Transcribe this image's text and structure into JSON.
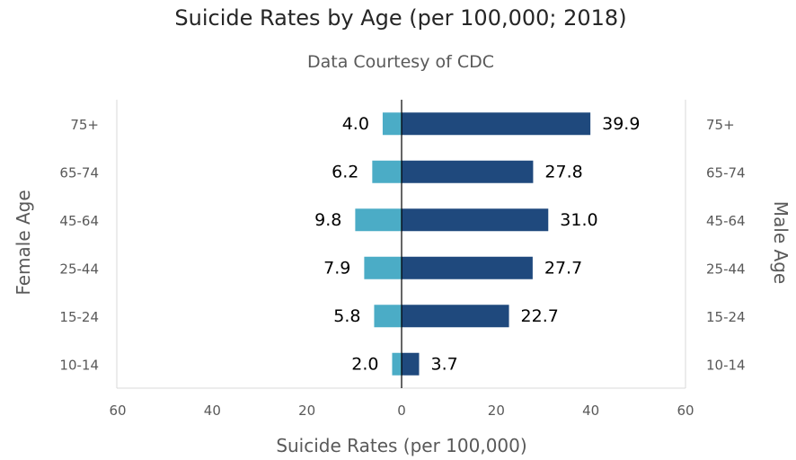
{
  "chart_data": {
    "type": "bar",
    "orientation": "horizontal-butterfly",
    "title": "Suicide Rates by Age (per 100,000; 2018)",
    "subtitle": "Data Courtesy of CDC",
    "xlabel": "Suicide Rates (per 100,000)",
    "ylabel_left": "Female Age",
    "ylabel_right": "Male Age",
    "xlim": [
      -60,
      60
    ],
    "x_ticks": [
      -60,
      -40,
      -20,
      0,
      20,
      40,
      60
    ],
    "x_tick_labels": [
      "60",
      "40",
      "20",
      "0",
      "20",
      "40",
      "60"
    ],
    "categories": [
      "75+",
      "65-74",
      "45-64",
      "25-44",
      "15-24",
      "10-14"
    ],
    "series": [
      {
        "name": "Female",
        "values": [
          4.0,
          6.2,
          9.8,
          7.9,
          5.8,
          2.0
        ],
        "labels": [
          "4.0",
          "6.2",
          "9.8",
          "7.9",
          "5.8",
          "2.0"
        ],
        "color": "#4bacc6"
      },
      {
        "name": "Male",
        "values": [
          39.9,
          27.8,
          31.0,
          27.7,
          22.7,
          3.7
        ],
        "labels": [
          "39.9",
          "27.8",
          "31.0",
          "27.7",
          "22.7",
          "3.7"
        ],
        "color": "#1f497d"
      }
    ],
    "grid": false,
    "legend": "none"
  }
}
